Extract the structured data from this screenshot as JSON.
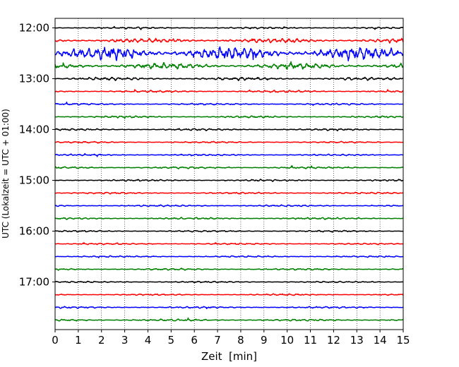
{
  "chart_data": {
    "type": "line",
    "title": "",
    "xlabel": "Zeit  [min]",
    "ylabel": "UTC (Lokalzeit = UTC + 01:00)",
    "xlim": [
      0,
      15
    ],
    "x_ticks": [
      0,
      1,
      2,
      3,
      4,
      5,
      6,
      7,
      8,
      9,
      10,
      11,
      12,
      13,
      14,
      15
    ],
    "y_ticks": [
      "12:00",
      "13:00",
      "14:00",
      "15:00",
      "16:00",
      "17:00"
    ],
    "x_grid": true,
    "trace_interval_minutes": 15,
    "color_cycle": [
      "#000000",
      "#ff0000",
      "#0000ff",
      "#008000"
    ],
    "traces": [
      {
        "start": "12:00",
        "color": "#000000",
        "amplitude": 0.18
      },
      {
        "start": "12:15",
        "color": "#ff0000",
        "amplitude": 0.45
      },
      {
        "start": "12:30",
        "color": "#0000ff",
        "amplitude": 1.3
      },
      {
        "start": "12:45",
        "color": "#008000",
        "amplitude": 0.6
      },
      {
        "start": "13:00",
        "color": "#000000",
        "amplitude": 0.3
      },
      {
        "start": "13:15",
        "color": "#ff0000",
        "amplitude": 0.22
      },
      {
        "start": "13:30",
        "color": "#0000ff",
        "amplitude": 0.18
      },
      {
        "start": "13:45",
        "color": "#008000",
        "amplitude": 0.2
      },
      {
        "start": "14:00",
        "color": "#000000",
        "amplitude": 0.2
      },
      {
        "start": "14:15",
        "color": "#ff0000",
        "amplitude": 0.16
      },
      {
        "start": "14:30",
        "color": "#0000ff",
        "amplitude": 0.16
      },
      {
        "start": "14:45",
        "color": "#008000",
        "amplitude": 0.2
      },
      {
        "start": "15:00",
        "color": "#000000",
        "amplitude": 0.18
      },
      {
        "start": "15:15",
        "color": "#ff0000",
        "amplitude": 0.18
      },
      {
        "start": "15:30",
        "color": "#0000ff",
        "amplitude": 0.18
      },
      {
        "start": "15:45",
        "color": "#008000",
        "amplitude": 0.2
      },
      {
        "start": "16:00",
        "color": "#000000",
        "amplitude": 0.16
      },
      {
        "start": "16:15",
        "color": "#ff0000",
        "amplitude": 0.16
      },
      {
        "start": "16:30",
        "color": "#0000ff",
        "amplitude": 0.16
      },
      {
        "start": "16:45",
        "color": "#008000",
        "amplitude": 0.18
      },
      {
        "start": "17:00",
        "color": "#000000",
        "amplitude": 0.16
      },
      {
        "start": "17:15",
        "color": "#ff0000",
        "amplitude": 0.16
      },
      {
        "start": "17:30",
        "color": "#0000ff",
        "amplitude": 0.18
      },
      {
        "start": "17:45",
        "color": "#008000",
        "amplitude": 0.2
      }
    ]
  }
}
